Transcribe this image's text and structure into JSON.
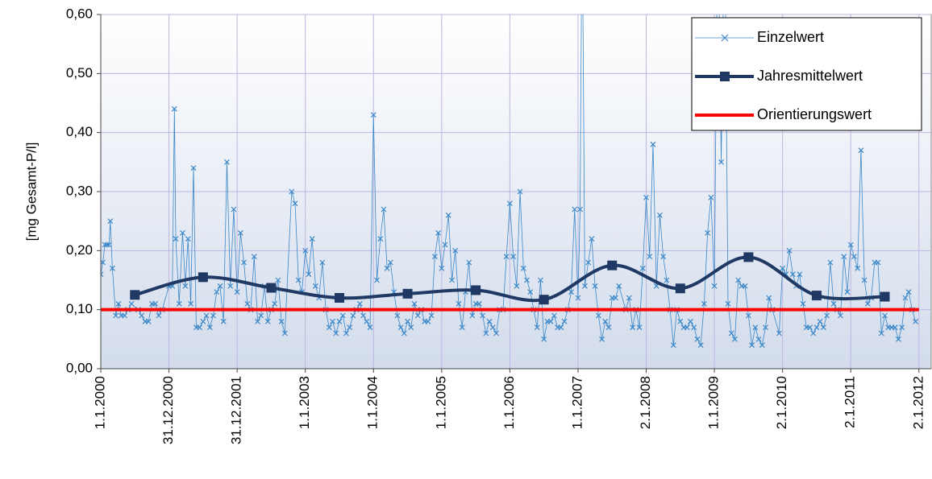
{
  "chart_data": {
    "type": "line",
    "y_label": "[mg Gesamt-P/l]",
    "xlim": [
      2000,
      2012.18
    ],
    "xticks": [
      {
        "value": 2000,
        "label": "1.1.2000"
      },
      {
        "value": 2001,
        "label": "31.12.2000"
      },
      {
        "value": 2002,
        "label": "31.12.2001"
      },
      {
        "value": 2003,
        "label": "1.1.2003"
      },
      {
        "value": 2004,
        "label": "1.1.2004"
      },
      {
        "value": 2005,
        "label": "1.1.2005"
      },
      {
        "value": 2006,
        "label": "1.1.2006"
      },
      {
        "value": 2007,
        "label": "1.1.2007"
      },
      {
        "value": 2008,
        "label": "2.1.2008"
      },
      {
        "value": 2009,
        "label": "1.1.2009"
      },
      {
        "value": 2010,
        "label": "2.1.2010"
      },
      {
        "value": 2011,
        "label": "2.1.2011"
      },
      {
        "value": 2012,
        "label": "2.1.2012"
      }
    ],
    "ylim": [
      0,
      0.6
    ],
    "yticks": [
      {
        "value": 0,
        "label": "0,00"
      },
      {
        "value": 0.1,
        "label": "0,10"
      },
      {
        "value": 0.2,
        "label": "0,20"
      },
      {
        "value": 0.3,
        "label": "0,30"
      },
      {
        "value": 0.4,
        "label": "0,40"
      },
      {
        "value": 0.5,
        "label": "0,50"
      },
      {
        "value": 0.6,
        "label": "0,60"
      }
    ],
    "grid": true,
    "legend": "upper right",
    "series": [
      {
        "name": "Einzelwert",
        "color": "#3a87c8",
        "style": "thin-cross",
        "x": [
          2000.0,
          2000.03,
          2000.06,
          2000.09,
          2000.12,
          2000.14,
          2000.17,
          2000.22,
          2000.26,
          2000.3,
          2000.35,
          2000.4,
          2000.45,
          2000.55,
          2000.6,
          2000.65,
          2000.7,
          2000.75,
          2000.8,
          2000.85,
          2000.9,
          2001.0,
          2001.05,
          2001.08,
          2001.1,
          2001.15,
          2001.2,
          2001.24,
          2001.28,
          2001.32,
          2001.36,
          2001.4,
          2001.45,
          2001.5,
          2001.55,
          2001.6,
          2001.65,
          2001.7,
          2001.75,
          2001.8,
          2001.85,
          2001.9,
          2001.95,
          2002.0,
          2002.05,
          2002.1,
          2002.15,
          2002.2,
          2002.25,
          2002.3,
          2002.35,
          2002.4,
          2002.45,
          2002.5,
          2002.55,
          2002.6,
          2002.65,
          2002.7,
          2002.8,
          2002.85,
          2002.9,
          2002.95,
          2003.0,
          2003.05,
          2003.1,
          2003.15,
          2003.2,
          2003.25,
          2003.3,
          2003.35,
          2003.4,
          2003.45,
          2003.5,
          2003.55,
          2003.6,
          2003.65,
          2003.7,
          2003.75,
          2003.8,
          2003.85,
          2003.9,
          2003.95,
          2004.0,
          2004.05,
          2004.1,
          2004.15,
          2004.2,
          2004.25,
          2004.3,
          2004.35,
          2004.4,
          2004.45,
          2004.5,
          2004.55,
          2004.6,
          2004.65,
          2004.7,
          2004.75,
          2004.8,
          2004.85,
          2004.9,
          2004.95,
          2005.0,
          2005.05,
          2005.1,
          2005.15,
          2005.2,
          2005.25,
          2005.3,
          2005.35,
          2005.4,
          2005.45,
          2005.5,
          2005.55,
          2005.6,
          2005.65,
          2005.7,
          2005.75,
          2005.8,
          2005.85,
          2005.9,
          2005.95,
          2006.0,
          2006.05,
          2006.1,
          2006.15,
          2006.2,
          2006.25,
          2006.3,
          2006.35,
          2006.4,
          2006.45,
          2006.5,
          2006.55,
          2006.6,
          2006.65,
          2006.7,
          2006.75,
          2006.8,
          2006.85,
          2006.9,
          2006.95,
          2007.0,
          2007.03,
          2007.06,
          2007.1,
          2007.15,
          2007.2,
          2007.25,
          2007.3,
          2007.35,
          2007.4,
          2007.45,
          2007.5,
          2007.55,
          2007.6,
          2007.7,
          2007.75,
          2007.8,
          2007.85,
          2007.9,
          2007.95,
          2008.0,
          2008.05,
          2008.1,
          2008.15,
          2008.2,
          2008.25,
          2008.3,
          2008.35,
          2008.4,
          2008.45,
          2008.5,
          2008.55,
          2008.6,
          2008.65,
          2008.7,
          2008.75,
          2008.8,
          2008.85,
          2008.9,
          2008.95,
          2009.0,
          2009.05,
          2009.1,
          2009.15,
          2009.2,
          2009.25,
          2009.3,
          2009.35,
          2009.4,
          2009.45,
          2009.5,
          2009.55,
          2009.6,
          2009.65,
          2009.7,
          2009.75,
          2009.8,
          2009.85,
          2009.95,
          2010.0,
          2010.05,
          2010.1,
          2010.15,
          2010.2,
          2010.25,
          2010.3,
          2010.35,
          2010.4,
          2010.45,
          2010.5,
          2010.55,
          2010.6,
          2010.65,
          2010.7,
          2010.75,
          2010.8,
          2010.85,
          2010.9,
          2010.95,
          2011.0,
          2011.05,
          2011.1,
          2011.15,
          2011.2,
          2011.25,
          2011.3,
          2011.35,
          2011.4,
          2011.45,
          2011.5,
          2011.55,
          2011.6,
          2011.65,
          2011.7,
          2011.75,
          2011.8,
          2011.85,
          2011.9,
          2011.95
        ],
        "values": [
          0.16,
          0.18,
          0.21,
          0.21,
          0.21,
          0.25,
          0.17,
          0.09,
          0.11,
          0.09,
          0.09,
          0.1,
          0.11,
          0.1,
          0.09,
          0.08,
          0.08,
          0.11,
          0.11,
          0.09,
          0.1,
          0.14,
          0.14,
          0.44,
          0.22,
          0.11,
          0.23,
          0.14,
          0.22,
          0.11,
          0.34,
          0.07,
          0.07,
          0.08,
          0.09,
          0.07,
          0.09,
          0.13,
          0.14,
          0.08,
          0.35,
          0.14,
          0.27,
          0.13,
          0.23,
          0.18,
          0.11,
          0.1,
          0.19,
          0.08,
          0.09,
          0.14,
          0.08,
          0.1,
          0.11,
          0.15,
          0.08,
          0.06,
          0.3,
          0.28,
          0.15,
          0.13,
          0.2,
          0.16,
          0.22,
          0.14,
          0.12,
          0.18,
          0.1,
          0.07,
          0.08,
          0.06,
          0.08,
          0.09,
          0.06,
          0.07,
          0.09,
          0.1,
          0.11,
          0.09,
          0.08,
          0.07,
          0.43,
          0.15,
          0.22,
          0.27,
          0.17,
          0.18,
          0.13,
          0.09,
          0.07,
          0.06,
          0.08,
          0.07,
          0.11,
          0.09,
          0.1,
          0.08,
          0.08,
          0.09,
          0.19,
          0.23,
          0.17,
          0.21,
          0.26,
          0.15,
          0.2,
          0.11,
          0.07,
          0.13,
          0.18,
          0.09,
          0.11,
          0.11,
          0.09,
          0.06,
          0.08,
          0.07,
          0.06,
          0.1,
          0.1,
          0.19,
          0.28,
          0.19,
          0.14,
          0.3,
          0.17,
          0.15,
          0.13,
          0.1,
          0.07,
          0.15,
          0.05,
          0.08,
          0.08,
          0.09,
          0.07,
          0.07,
          0.08,
          0.1,
          0.13,
          0.27,
          0.12,
          0.27,
          0.8,
          0.14,
          0.18,
          0.22,
          0.14,
          0.09,
          0.05,
          0.08,
          0.07,
          0.12,
          0.12,
          0.14,
          0.1,
          0.12,
          0.07,
          0.1,
          0.07,
          0.17,
          0.29,
          0.19,
          0.38,
          0.14,
          0.26,
          0.19,
          0.15,
          0.1,
          0.04,
          0.1,
          0.08,
          0.07,
          0.07,
          0.08,
          0.07,
          0.05,
          0.04,
          0.11,
          0.23,
          0.29,
          0.14,
          0.8,
          0.35,
          0.8,
          0.11,
          0.06,
          0.05,
          0.15,
          0.14,
          0.14,
          0.09,
          0.04,
          0.07,
          0.05,
          0.04,
          0.07,
          0.12,
          0.1,
          0.06,
          0.17,
          0.16,
          0.2,
          0.16,
          0.14,
          0.16,
          0.11,
          0.07,
          0.07,
          0.06,
          0.07,
          0.08,
          0.07,
          0.09,
          0.18,
          0.11,
          0.1,
          0.09,
          0.19,
          0.13,
          0.21,
          0.19,
          0.17,
          0.37,
          0.15,
          0.11,
          0.12,
          0.18,
          0.18,
          0.06,
          0.09,
          0.07,
          0.07,
          0.07,
          0.05,
          0.07,
          0.12,
          0.13,
          0.1,
          0.08
        ]
      },
      {
        "name": "Jahresmittelwert",
        "color": "#1f3864",
        "style": "thick-square",
        "x": [
          2000.5,
          2001.5,
          2002.5,
          2003.5,
          2004.5,
          2005.5,
          2006.5,
          2007.5,
          2008.5,
          2009.5,
          2010.5,
          2011.5
        ],
        "values": [
          0.125,
          0.155,
          0.137,
          0.12,
          0.127,
          0.133,
          0.117,
          0.175,
          0.136,
          0.189,
          0.124,
          0.122
        ]
      },
      {
        "name": "Orientierungswert",
        "color": "#ff0000",
        "style": "thick-plain",
        "x": [
          2000,
          2012
        ],
        "values": [
          0.1,
          0.1
        ]
      }
    ]
  }
}
